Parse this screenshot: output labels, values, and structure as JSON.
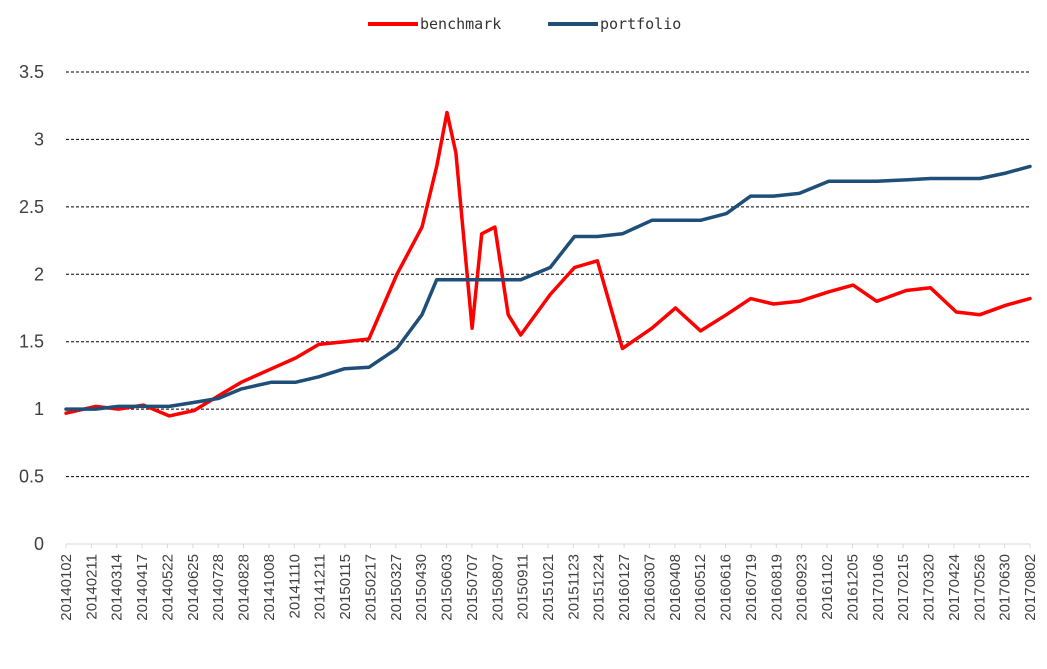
{
  "chart_data": {
    "type": "line",
    "title": "",
    "xlabel": "",
    "ylabel": "",
    "ylim": [
      0,
      3.5
    ],
    "yticks": [
      "0",
      "0.5",
      "1",
      "1.5",
      "2",
      "2.5",
      "3",
      "3.5"
    ],
    "grid": "horizontal dashed",
    "legend_position": "top-center",
    "x_tick_labels": [
      "20140102",
      "20140211",
      "20140314",
      "20140417",
      "20140522",
      "20140625",
      "20140728",
      "20140828",
      "20141008",
      "20141110",
      "20141211",
      "20150115",
      "20150217",
      "20150327",
      "20150430",
      "20150603",
      "20150707",
      "20150807",
      "20150911",
      "20151021",
      "20151123",
      "20151224",
      "20160127",
      "20160307",
      "20160408",
      "20160512",
      "20160616",
      "20160719",
      "20160819",
      "20160923",
      "20161102",
      "20161205",
      "20170106",
      "20170215",
      "20170320",
      "20170424",
      "20170526",
      "20170630",
      "20170802"
    ],
    "x": [
      "20140102",
      "20140211",
      "20140314",
      "20140417",
      "20140522",
      "20140625",
      "20140728",
      "20140828",
      "20141008",
      "20141110",
      "20141211",
      "20150115",
      "20150217",
      "20150327",
      "20150430",
      "20150520",
      "20150603",
      "20150615",
      "20150707",
      "20150720",
      "20150807",
      "20150825",
      "20150911",
      "20151021",
      "20151123",
      "20151224",
      "20160127",
      "20160307",
      "20160408",
      "20160512",
      "20160616",
      "20160719",
      "20160819",
      "20160923",
      "20161102",
      "20161205",
      "20170106",
      "20170215",
      "20170320",
      "20170424",
      "20170526",
      "20170630",
      "20170802"
    ],
    "series": [
      {
        "name": "benchmark",
        "color": "#ff0000",
        "values": [
          0.97,
          1.02,
          1.0,
          1.03,
          0.95,
          0.99,
          1.1,
          1.2,
          1.3,
          1.38,
          1.48,
          1.5,
          1.52,
          2.0,
          2.35,
          2.8,
          3.2,
          2.9,
          1.6,
          2.3,
          2.35,
          1.7,
          1.55,
          1.85,
          2.05,
          2.1,
          1.45,
          1.6,
          1.75,
          1.58,
          1.7,
          1.82,
          1.78,
          1.8,
          1.87,
          1.92,
          1.8,
          1.88,
          1.9,
          1.72,
          1.7,
          1.77,
          1.82
        ]
      },
      {
        "name": "portfolio",
        "color": "#1f4e79",
        "values": [
          1.0,
          1.0,
          1.02,
          1.02,
          1.02,
          1.05,
          1.08,
          1.15,
          1.2,
          1.2,
          1.24,
          1.3,
          1.31,
          1.45,
          1.7,
          1.96,
          1.96,
          1.96,
          1.96,
          1.96,
          1.96,
          1.96,
          1.96,
          2.05,
          2.28,
          2.28,
          2.3,
          2.4,
          2.4,
          2.4,
          2.45,
          2.58,
          2.58,
          2.6,
          2.69,
          2.69,
          2.69,
          2.7,
          2.71,
          2.71,
          2.71,
          2.75,
          2.8
        ]
      }
    ]
  }
}
